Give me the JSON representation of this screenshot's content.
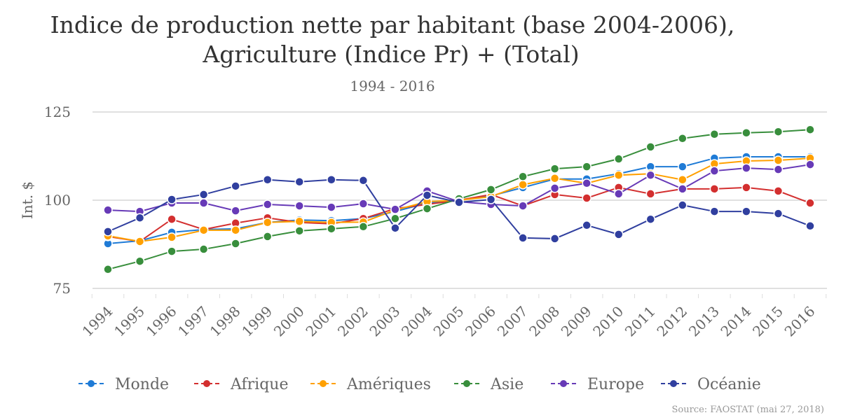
{
  "chart_data": {
    "type": "line",
    "title_lines": [
      "Indice de production nette par habitant (base 2004-2006),",
      "Agriculture (Indice Pr) + (Total)"
    ],
    "subtitle": "1994 - 2016",
    "xlabel": "",
    "ylabel": "Int. $",
    "ylim": [
      75,
      125
    ],
    "yticks": [
      75,
      100,
      125
    ],
    "grid": true,
    "legend_position": "bottom",
    "source": "Source: FAOSTAT (mai 27, 2018)",
    "x": [
      "1994",
      "1995",
      "1996",
      "1997",
      "1998",
      "1999",
      "2000",
      "2001",
      "2002",
      "2003",
      "2004",
      "2005",
      "2006",
      "2007",
      "2008",
      "2009",
      "2010",
      "2011",
      "2012",
      "2013",
      "2014",
      "2015",
      "2016"
    ],
    "series": [
      {
        "name": "Monde",
        "color": "#1f7bd6",
        "values": [
          87.7,
          88.5,
          90.9,
          91.7,
          91.9,
          93.7,
          94.4,
          94.2,
          94.8,
          96.8,
          99.2,
          100.0,
          101.2,
          103.6,
          106.0,
          106.0,
          107.5,
          109.5,
          109.5,
          111.9,
          112.3,
          112.3,
          112.3
        ]
      },
      {
        "name": "Afrique",
        "color": "#d32f2f",
        "values": [
          89.7,
          88.3,
          94.6,
          91.7,
          93.5,
          95.0,
          93.7,
          93.3,
          94.8,
          97.6,
          98.8,
          100.0,
          101.6,
          98.4,
          101.6,
          100.6,
          103.6,
          101.8,
          103.2,
          103.2,
          103.6,
          102.6,
          99.2
        ]
      },
      {
        "name": "Amériques",
        "color": "#ffa000",
        "values": [
          89.9,
          88.3,
          89.5,
          91.5,
          91.5,
          93.7,
          94.0,
          93.7,
          93.8,
          97.2,
          99.6,
          100.0,
          101.0,
          104.4,
          106.2,
          104.8,
          107.1,
          107.5,
          105.8,
          110.3,
          111.1,
          111.3,
          111.9
        ]
      },
      {
        "name": "Asie",
        "color": "#388e3c",
        "values": [
          80.4,
          82.7,
          85.5,
          86.1,
          87.7,
          89.7,
          91.3,
          91.9,
          92.5,
          94.8,
          97.6,
          100.4,
          103.0,
          106.7,
          108.9,
          109.5,
          111.7,
          115.1,
          117.5,
          118.7,
          119.1,
          119.4,
          120.0
        ]
      },
      {
        "name": "Europe",
        "color": "#673ab7",
        "values": [
          97.2,
          96.8,
          99.2,
          99.2,
          97.0,
          98.8,
          98.4,
          98.0,
          99.0,
          97.4,
          102.6,
          99.6,
          98.8,
          98.4,
          103.4,
          104.8,
          101.8,
          107.1,
          103.2,
          108.3,
          109.1,
          108.7,
          110.1
        ]
      },
      {
        "name": "Océanie",
        "color": "#303f9f",
        "values": [
          91.1,
          95.0,
          100.2,
          101.6,
          104.0,
          105.8,
          105.2,
          105.8,
          105.6,
          92.1,
          101.4,
          99.4,
          100.2,
          89.3,
          89.1,
          92.9,
          90.3,
          94.6,
          98.6,
          96.8,
          96.8,
          96.2,
          92.7
        ]
      }
    ]
  }
}
